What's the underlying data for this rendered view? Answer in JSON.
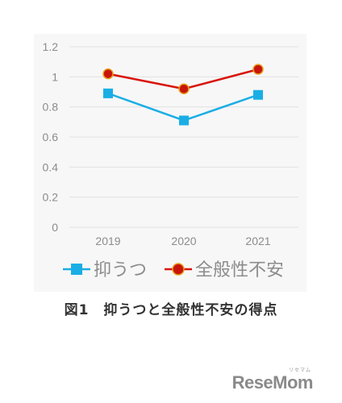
{
  "chart_data": {
    "type": "line",
    "title": "",
    "categories": [
      "2019",
      "2020",
      "2021"
    ],
    "ylim": [
      0,
      1.2
    ],
    "yticks": [
      "0",
      "0.2",
      "0.4",
      "0.6",
      "0.8",
      "1",
      "1.2"
    ],
    "grid": true,
    "legend_position": "bottom",
    "series": [
      {
        "name": "抑うつ",
        "values": [
          0.89,
          0.71,
          0.88
        ],
        "color": "#1aaee5",
        "marker": "square"
      },
      {
        "name": "全般性不安",
        "values": [
          1.02,
          0.92,
          1.05
        ],
        "color": "#d9150c",
        "marker": "circle",
        "marker_fill": "#c8150a",
        "marker_edge": "#e8a020"
      }
    ]
  },
  "caption": "図1　抑うつと全般性不安の得点",
  "watermark": {
    "brand": "ReseMom",
    "kana": "リセマム"
  }
}
